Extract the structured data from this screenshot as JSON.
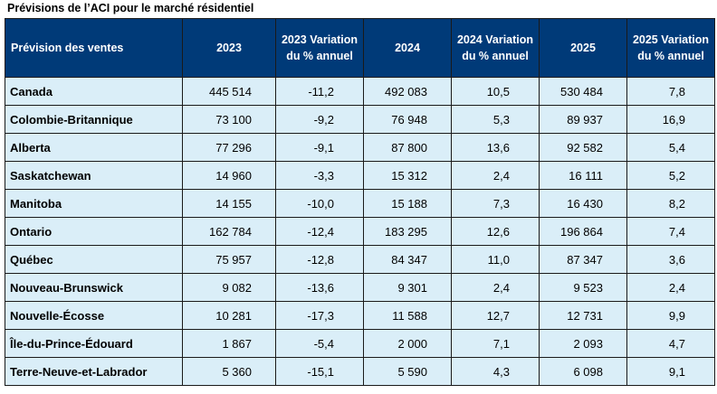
{
  "caption": "Prévisions de l’ACI pour le marché résidentiel",
  "headers": [
    "Prévision des ventes",
    "2023",
    "2023 Variation du % annuel",
    "2024",
    "2024 Variation du % annuel",
    "2025",
    "2025 Variation du % annuel"
  ],
  "rows": [
    [
      "Canada",
      "445 514",
      "-11,2",
      "492 083",
      "10,5",
      "530 484",
      "7,8"
    ],
    [
      "Colombie-Britannique",
      "73 100",
      "-9,2",
      "76 948",
      "5,3",
      "89 937",
      "16,9"
    ],
    [
      "Alberta",
      "77 296",
      "-9,1",
      "87 800",
      "13,6",
      "92 582",
      "5,4"
    ],
    [
      "Saskatchewan",
      "14 960",
      "-3,3",
      "15 312",
      "2,4",
      "16 111",
      "5,2"
    ],
    [
      "Manitoba",
      "14 155",
      "-10,0",
      "15 188",
      "7,3",
      "16 430",
      "8,2"
    ],
    [
      "Ontario",
      "162 784",
      "-12,4",
      "183 295",
      "12,6",
      "196 864",
      "7,4"
    ],
    [
      "Québec",
      "75 957",
      "-12,8",
      "84 347",
      "11,0",
      "87 347",
      "3,6"
    ],
    [
      "Nouveau-Brunswick",
      "9 082",
      "-13,6",
      "9 301",
      "2,4",
      "9 523",
      "2,4"
    ],
    [
      "Nouvelle-Écosse",
      "10 281",
      "-17,3",
      "11 588",
      "12,7",
      "12 731",
      "9,9"
    ],
    [
      "Île-du-Prince-Édouard",
      "1 867",
      "-5,4",
      "2 000",
      "7,1",
      "2 093",
      "4,7"
    ],
    [
      "Terre-Neuve-et-Labrador",
      "5 360",
      "-15,1",
      "5 590",
      "4,3",
      "6 098",
      "9,1"
    ]
  ],
  "colors": {
    "header_bg": "#003a78",
    "header_text": "#ffffff",
    "cell_bg": "#daeef8"
  },
  "chart_data": {
    "type": "table",
    "title": "Prévisions de l’ACI pour le marché résidentiel",
    "columns": [
      "Prévision des ventes",
      "2023",
      "2023 Variation du % annuel",
      "2024",
      "2024 Variation du % annuel",
      "2025",
      "2025 Variation du % annuel"
    ],
    "rows": [
      [
        "Canada",
        445514,
        -11.2,
        492083,
        10.5,
        530484,
        7.8
      ],
      [
        "Colombie-Britannique",
        73100,
        -9.2,
        76948,
        5.3,
        89937,
        16.9
      ],
      [
        "Alberta",
        77296,
        -9.1,
        87800,
        13.6,
        92582,
        5.4
      ],
      [
        "Saskatchewan",
        14960,
        -3.3,
        15312,
        2.4,
        16111,
        5.2
      ],
      [
        "Manitoba",
        14155,
        -10.0,
        15188,
        7.3,
        16430,
        8.2
      ],
      [
        "Ontario",
        162784,
        -12.4,
        183295,
        12.6,
        196864,
        7.4
      ],
      [
        "Québec",
        75957,
        -12.8,
        84347,
        11.0,
        87347,
        3.6
      ],
      [
        "Nouveau-Brunswick",
        9082,
        -13.6,
        9301,
        2.4,
        9523,
        2.4
      ],
      [
        "Nouvelle-Écosse",
        10281,
        -17.3,
        11588,
        12.7,
        12731,
        9.9
      ],
      [
        "Île-du-Prince-Édouard",
        1867,
        -5.4,
        2000,
        7.1,
        2093,
        4.7
      ],
      [
        "Terre-Neuve-et-Labrador",
        5360,
        -15.1,
        5590,
        4.3,
        6098,
        9.1
      ]
    ]
  }
}
